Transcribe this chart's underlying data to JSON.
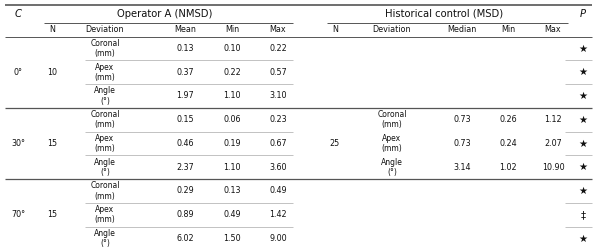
{
  "title_left": "Operator A (NMSD)",
  "title_right": "Historical control (MSD)",
  "col_c": "C",
  "col_p": "P",
  "op_headers": [
    "N",
    "Deviation",
    "Mean",
    "Min",
    "Max"
  ],
  "hist_headers": [
    "N",
    "Deviation",
    "Median",
    "Min",
    "Max"
  ],
  "rows": [
    {
      "c": "",
      "n_op": "",
      "dev": "Coronal\n(mm)",
      "mean": "0.13",
      "min_op": "0.10",
      "max_op": "0.22",
      "n_hist": "",
      "dev_hist": "",
      "median": "",
      "min_hist": "",
      "max_hist": "",
      "p": "★"
    },
    {
      "c": "0°",
      "n_op": "10",
      "dev": "Apex\n(mm)",
      "mean": "0.37",
      "min_op": "0.22",
      "max_op": "0.57",
      "n_hist": "",
      "dev_hist": "",
      "median": "",
      "min_hist": "",
      "max_hist": "",
      "p": "★"
    },
    {
      "c": "",
      "n_op": "",
      "dev": "Angle\n(°)",
      "mean": "1.97",
      "min_op": "1.10",
      "max_op": "3.10",
      "n_hist": "",
      "dev_hist": "",
      "median": "",
      "min_hist": "",
      "max_hist": "",
      "p": "★"
    },
    {
      "c": "",
      "n_op": "",
      "dev": "Coronal\n(mm)",
      "mean": "0.15",
      "min_op": "0.06",
      "max_op": "0.23",
      "n_hist": "",
      "dev_hist": "Coronal\n(mm)",
      "median": "0.73",
      "min_hist": "0.26",
      "max_hist": "1.12",
      "p": "★"
    },
    {
      "c": "30°",
      "n_op": "15",
      "dev": "Apex\n(mm)",
      "mean": "0.46",
      "min_op": "0.19",
      "max_op": "0.67",
      "n_hist": "25",
      "dev_hist": "Apex\n(mm)",
      "median": "0.73",
      "min_hist": "0.24",
      "max_hist": "2.07",
      "p": "★"
    },
    {
      "c": "",
      "n_op": "",
      "dev": "Angle\n(°)",
      "mean": "2.37",
      "min_op": "1.10",
      "max_op": "3.60",
      "n_hist": "",
      "dev_hist": "Angle\n(°)",
      "median": "3.14",
      "min_hist": "1.02",
      "max_hist": "10.90",
      "p": "★"
    },
    {
      "c": "",
      "n_op": "",
      "dev": "Coronal\n(mm)",
      "mean": "0.29",
      "min_op": "0.13",
      "max_op": "0.49",
      "n_hist": "",
      "dev_hist": "",
      "median": "",
      "min_hist": "",
      "max_hist": "",
      "p": "★"
    },
    {
      "c": "70°",
      "n_op": "15",
      "dev": "Apex\n(mm)",
      "mean": "0.89",
      "min_op": "0.49",
      "max_op": "1.42",
      "n_hist": "",
      "dev_hist": "",
      "median": "",
      "min_hist": "",
      "max_hist": "",
      "p": "‡"
    },
    {
      "c": "",
      "n_op": "",
      "dev": "Angle\n(°)",
      "mean": "6.02",
      "min_op": "1.50",
      "max_op": "9.00",
      "n_hist": "",
      "dev_hist": "",
      "median": "",
      "min_hist": "",
      "max_hist": "",
      "p": "★"
    }
  ],
  "bg_color": "#ffffff",
  "text_color": "#111111",
  "line_color": "#555555",
  "thin_line_color": "#aaaaaa",
  "font_size": 5.8,
  "header_font_size": 7.2,
  "subheader_font_size": 5.8
}
